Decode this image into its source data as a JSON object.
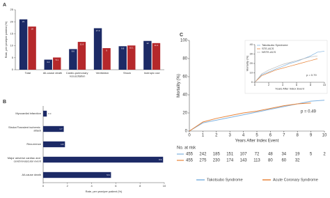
{
  "chart_data": [
    {
      "type": "bar",
      "panel": "A",
      "ylabel": "Rate, per year/per patient (%)",
      "categories": [
        "Total",
        "All-cause death",
        "Cardio-pulmonary resuscitation",
        "Ventilation",
        "Shock",
        "Inotropic use"
      ],
      "series": [
        {
          "color": "#1c2a66",
          "values": [
            21,
            4.2,
            8.6,
            17.3,
            9.8,
            12
          ]
        },
        {
          "color": "#b5282b",
          "values": [
            18,
            5.1,
            11.6,
            9,
            10.1,
            11.1
          ]
        }
      ],
      "ylim": [
        0,
        25
      ],
      "yticks": [
        0,
        5,
        10,
        15,
        20,
        25
      ]
    },
    {
      "type": "hbar",
      "panel": "B",
      "xlabel": "Rate, per year/per patient (%)",
      "categories": [
        "Myocardial infarction",
        "Stroke/Transient ischemic attack",
        "Recurrence",
        "Major adverse cardiac and cerebrovascular event",
        "All-cause death"
      ],
      "values": [
        0.3,
        1.7,
        1.8,
        9.9,
        5.6
      ],
      "color": "#1c2a66",
      "xlim": [
        0,
        10
      ],
      "xticks": [
        0,
        2,
        4,
        6,
        8,
        10
      ]
    },
    {
      "type": "line",
      "panel": "C",
      "ylabel": "Mortality (%)",
      "xlabel": "Years After Index Event",
      "annotation": "p = 0.49",
      "x": [
        0,
        1,
        2,
        3,
        4,
        5,
        6,
        7,
        8,
        9,
        10
      ],
      "series": [
        {
          "name": "Takotsubo Syndrome",
          "color": "#7fb2e0",
          "values": [
            0,
            9,
            12,
            15,
            18,
            21,
            24,
            27,
            30,
            33,
            34
          ]
        },
        {
          "name": "Acute Coronary Syndrome",
          "color": "#e8843a",
          "values": [
            0,
            10,
            14,
            17,
            20,
            22,
            25,
            28,
            30,
            31,
            null
          ]
        }
      ],
      "xlim": [
        0,
        10
      ],
      "ylim": [
        0,
        100
      ],
      "xticks": [
        0,
        1,
        2,
        3,
        4,
        5,
        6,
        7,
        8,
        9,
        10
      ],
      "yticks": [
        0,
        20,
        40,
        60,
        80,
        100
      ],
      "legend": "bottom",
      "risk_table": {
        "title": "No. at risk",
        "rows": [
          [
            455,
            242,
            185,
            151,
            107,
            72,
            48,
            34,
            19,
            5,
            2
          ],
          [
            455,
            275,
            230,
            174,
            143,
            113,
            80,
            60,
            32
          ]
        ]
      }
    },
    {
      "type": "line",
      "ylabel": "Mortality (%)",
      "xlabel": "Years After Index Event",
      "annotation": "p = 0.79",
      "x": [
        0,
        1,
        2,
        3,
        4,
        5,
        6,
        7,
        8,
        9,
        10
      ],
      "series": [
        {
          "name": "Takotsubo Syndrome",
          "color": "#7fb2e0",
          "values": [
            0,
            8,
            11,
            14,
            17,
            20,
            22,
            25,
            28,
            32,
            33
          ]
        },
        {
          "name": "STE-ACS",
          "color": "#e8843a",
          "values": [
            0,
            7,
            10,
            13,
            15,
            17,
            19,
            21,
            23,
            25,
            null
          ]
        },
        {
          "name": "NSTE-ACS",
          "color": "#b9b9b9",
          "values": [
            0,
            9,
            13,
            16,
            19,
            21,
            23,
            25,
            27,
            28,
            null
          ]
        }
      ],
      "xlim": [
        0,
        10
      ],
      "ylim": [
        0,
        40
      ],
      "xticks": [
        0,
        2,
        4,
        6,
        8,
        10
      ],
      "yticks": [
        0,
        10,
        20,
        30,
        40
      ],
      "legend": "top-left"
    }
  ]
}
